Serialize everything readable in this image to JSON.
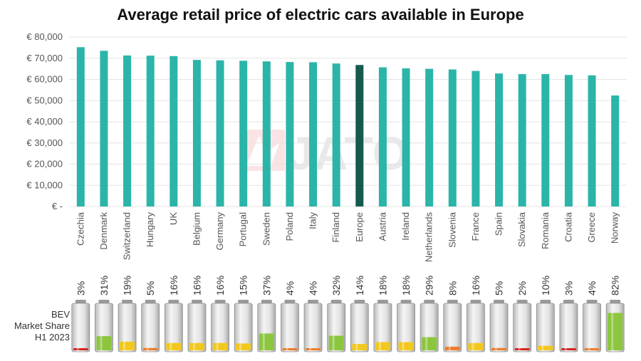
{
  "chart_data": {
    "type": "bar",
    "title": "Average retail price of electric cars available in Europe",
    "categories": [
      "Czechia",
      "Denmark",
      "Switzerland",
      "Hungary",
      "UK",
      "Belgium",
      "Germany",
      "Portugal",
      "Sweden",
      "Poland",
      "Italy",
      "Finland",
      "Europe",
      "Austria",
      "Ireland",
      "Netherlands",
      "Slovenia",
      "France",
      "Spain",
      "Slovakia",
      "Romania",
      "Croatia",
      "Greece",
      "Norway"
    ],
    "series": [
      {
        "values": [
          75200,
          73500,
          71300,
          71200,
          71000,
          69200,
          69000,
          68800,
          68500,
          68200,
          68100,
          67500,
          66800,
          65700,
          65200,
          65000,
          64700,
          64000,
          62800,
          62500,
          62500,
          62100,
          61900,
          52400
        ]
      }
    ],
    "highlight_category": "Europe",
    "yticks": [
      "€ -",
      "€ 10,000",
      "€ 20,000",
      "€ 30,000",
      "€ 40,000",
      "€ 50,000",
      "€ 60,000",
      "€ 70,000",
      "€ 80,000"
    ],
    "ylim": [
      0,
      80000
    ],
    "grid": true,
    "colors": {
      "bar": "#2bb5a9",
      "highlight": "#155a4e"
    },
    "bev_market_share": {
      "label_lines": [
        "BEV",
        "Market Share",
        "H1 2023"
      ],
      "labels": [
        "3%",
        "31%",
        "19%",
        "5%",
        "16%",
        "16%",
        "16%",
        "15%",
        "37%",
        "4%",
        "4%",
        "32%",
        "14%",
        "18%",
        "18%",
        "29%",
        "8%",
        "16%",
        "5%",
        "2%",
        "10%",
        "3%",
        "4%",
        "82%"
      ],
      "values": [
        3,
        31,
        19,
        5,
        16,
        16,
        16,
        15,
        37,
        4,
        4,
        32,
        14,
        18,
        18,
        29,
        8,
        16,
        5,
        2,
        10,
        3,
        4,
        82
      ]
    }
  },
  "watermark": "JATO"
}
